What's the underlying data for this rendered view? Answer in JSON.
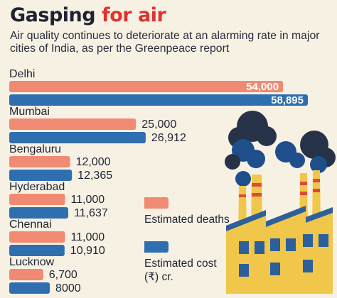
{
  "header": {
    "title_part1": "Gasping",
    "title_part2": "for air",
    "subtitle": "Air quality continues to deteriorate at an alarming rate in major cities of India, as per the Greenpeace report"
  },
  "legend": {
    "deaths_label": "Estimated deaths",
    "cost_label": "Estimated cost (₹) cr."
  },
  "colors": {
    "background": "#f7f1e4",
    "deaths_bar": "#f08a73",
    "cost_bar": "#2f6fb0",
    "title_accent": "#e0322e",
    "factory_yellow": "#f0c74a",
    "factory_blue": "#2d5f9a",
    "smoke_navy": "#263248",
    "smoke_blue": "#1e4f8a",
    "chimney_red": "#e0483a"
  },
  "chart_data": {
    "type": "bar",
    "orientation": "horizontal",
    "categories": [
      "Delhi",
      "Mumbai",
      "Bengaluru",
      "Hyderabad",
      "Chennai",
      "Lucknow"
    ],
    "series": [
      {
        "name": "Estimated deaths",
        "values": [
          54000,
          25000,
          12000,
          11000,
          11000,
          6700
        ],
        "labels": [
          "54,000",
          "25,000",
          "12,000",
          "11,000",
          "11,000",
          "6,700"
        ]
      },
      {
        "name": "Estimated cost (₹) cr.",
        "values": [
          58895,
          26912,
          12365,
          11637,
          10910,
          8000
        ],
        "labels": [
          "58,895",
          "26,912",
          "12,365",
          "11,637",
          "10,910",
          "8000"
        ]
      }
    ],
    "legend_position": "bottom-center",
    "grid": false
  },
  "illustration": "factory-with-smoke-icon"
}
